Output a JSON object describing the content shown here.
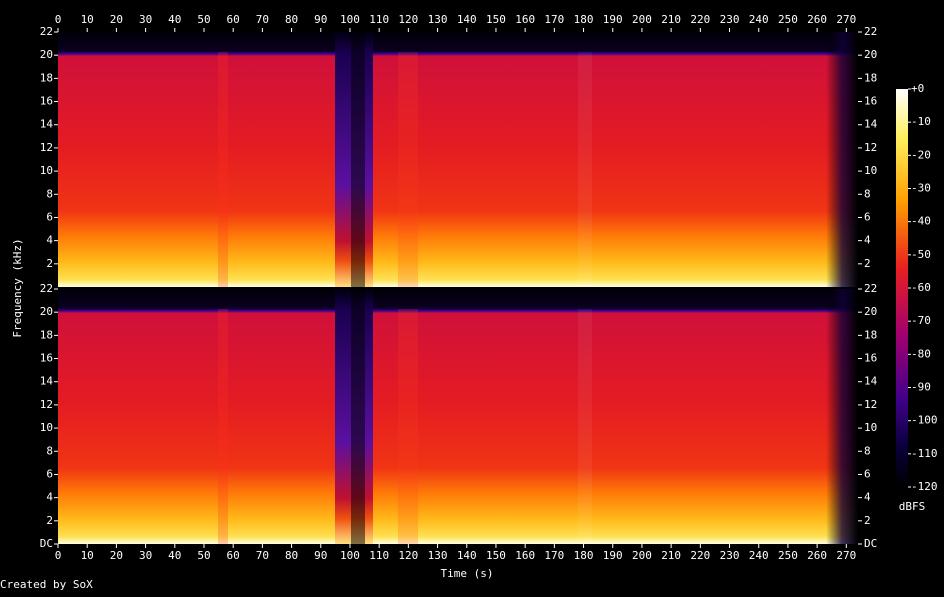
{
  "chart_data": {
    "type": "spectrogram",
    "xlabel": "Time (s)",
    "ylabel": "Frequency (kHz)",
    "credit": "Created by SoX",
    "xlim": [
      0,
      274
    ],
    "xticks": [
      0,
      10,
      20,
      30,
      40,
      50,
      60,
      70,
      80,
      90,
      100,
      110,
      120,
      130,
      140,
      150,
      160,
      170,
      180,
      190,
      200,
      210,
      220,
      230,
      240,
      250,
      260,
      270
    ],
    "channels": [
      {
        "ylim": [
          0,
          22
        ],
        "yticks": [
          2,
          4,
          6,
          8,
          10,
          12,
          14,
          16,
          18,
          20,
          22
        ]
      },
      {
        "ylim": [
          0,
          22
        ],
        "yticks": [
          {
            "value": 0,
            "label": "DC"
          },
          2,
          4,
          6,
          8,
          10,
          12,
          14,
          16,
          18,
          20,
          22
        ]
      }
    ],
    "colorbar": {
      "label": "dBFS",
      "lim": [
        -120,
        0
      ],
      "ticks": [
        {
          "value": 0,
          "label": "+0"
        },
        -10,
        -20,
        -30,
        -40,
        -50,
        -60,
        -70,
        -80,
        -90,
        -100,
        -110,
        -120
      ]
    }
  }
}
